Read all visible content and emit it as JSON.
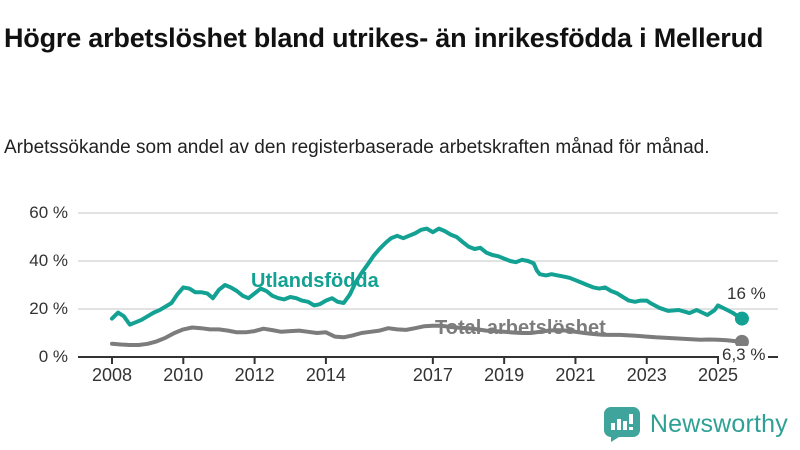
{
  "header": {
    "title": "Högre arbetslöshet bland utrikes- än inrikesfödda i Mellerud",
    "subtitle": "Arbetssökande som andel av den registerbaserade arbetskraften månad för månad."
  },
  "branding": {
    "name": "Newsworthy",
    "logo_icon": "bar-chart-speech-bubble-icon",
    "logo_color": "#3fa49c",
    "text_color": "#2ea094"
  },
  "colors": {
    "series_teal": "#12a192",
    "series_gray": "#7c7c7c",
    "axis": "#333333",
    "gridline": "#d9d9d9"
  },
  "chart_data": {
    "type": "line",
    "title": "Högre arbetslöshet bland utrikes- än inrikesfödda i Mellerud",
    "subtitle": "Arbetssökande som andel av den registerbaserade arbetskraften månad för månad.",
    "ylabel": "",
    "xlabel": "",
    "ylim": [
      0,
      60
    ],
    "grid": "horizontal",
    "legend_position": "inline-labels",
    "y_axis": {
      "unit": "%",
      "ticks": [
        {
          "value": 0,
          "label": "0 %"
        },
        {
          "value": 20,
          "label": "20 %"
        },
        {
          "value": 40,
          "label": "40 %"
        },
        {
          "value": 60,
          "label": "60 %"
        }
      ]
    },
    "x_axis": {
      "ticks": [
        {
          "value": 2008,
          "label": "2008"
        },
        {
          "value": 2010,
          "label": "2010"
        },
        {
          "value": 2012,
          "label": "2012"
        },
        {
          "value": 2014,
          "label": "2014"
        },
        {
          "value": 2017,
          "label": "2017"
        },
        {
          "value": 2019,
          "label": "2019"
        },
        {
          "value": 2021,
          "label": "2021"
        },
        {
          "value": 2023,
          "label": "2023"
        },
        {
          "value": 2025,
          "label": "2025"
        }
      ]
    },
    "series": [
      {
        "name": "Utlandsfödda",
        "color": "#12a192",
        "end_label": "16 %",
        "end_value": 16,
        "points": [
          [
            2008.0,
            16
          ],
          [
            2008.17,
            18.5
          ],
          [
            2008.33,
            17
          ],
          [
            2008.5,
            13.5
          ],
          [
            2008.67,
            14.5
          ],
          [
            2008.83,
            15.5
          ],
          [
            2009.0,
            17
          ],
          [
            2009.17,
            18.5
          ],
          [
            2009.33,
            19.5
          ],
          [
            2009.5,
            21
          ],
          [
            2009.67,
            22.5
          ],
          [
            2009.83,
            26
          ],
          [
            2010.0,
            29
          ],
          [
            2010.17,
            28.5
          ],
          [
            2010.33,
            27
          ],
          [
            2010.5,
            27
          ],
          [
            2010.67,
            26.5
          ],
          [
            2010.83,
            24.5
          ],
          [
            2011.0,
            28
          ],
          [
            2011.17,
            30
          ],
          [
            2011.33,
            29
          ],
          [
            2011.5,
            27.5
          ],
          [
            2011.67,
            25.5
          ],
          [
            2011.83,
            24.5
          ],
          [
            2012.0,
            26.5
          ],
          [
            2012.17,
            28.5
          ],
          [
            2012.33,
            27.5
          ],
          [
            2012.5,
            25.5
          ],
          [
            2012.67,
            24.5
          ],
          [
            2012.83,
            24
          ],
          [
            2013.0,
            25
          ],
          [
            2013.17,
            24.5
          ],
          [
            2013.33,
            23.5
          ],
          [
            2013.5,
            23
          ],
          [
            2013.67,
            21.5
          ],
          [
            2013.83,
            22
          ],
          [
            2014.0,
            23.5
          ],
          [
            2014.17,
            24.5
          ],
          [
            2014.33,
            23
          ],
          [
            2014.5,
            22.5
          ],
          [
            2014.67,
            26
          ],
          [
            2014.83,
            31
          ],
          [
            2015.0,
            35
          ],
          [
            2015.17,
            38.5
          ],
          [
            2015.33,
            42
          ],
          [
            2015.5,
            45
          ],
          [
            2015.67,
            47.5
          ],
          [
            2015.83,
            49.5
          ],
          [
            2016.0,
            50.5
          ],
          [
            2016.17,
            49.5
          ],
          [
            2016.33,
            50.5
          ],
          [
            2016.5,
            51.5
          ],
          [
            2016.67,
            53
          ],
          [
            2016.83,
            53.5
          ],
          [
            2017.0,
            52
          ],
          [
            2017.17,
            53.5
          ],
          [
            2017.33,
            52.5
          ],
          [
            2017.5,
            51
          ],
          [
            2017.67,
            50
          ],
          [
            2017.83,
            48
          ],
          [
            2018.0,
            46
          ],
          [
            2018.17,
            45
          ],
          [
            2018.33,
            45.5
          ],
          [
            2018.5,
            43.5
          ],
          [
            2018.67,
            42.5
          ],
          [
            2018.83,
            42
          ],
          [
            2019.0,
            41
          ],
          [
            2019.17,
            40
          ],
          [
            2019.33,
            39.5
          ],
          [
            2019.5,
            40.5
          ],
          [
            2019.67,
            40
          ],
          [
            2019.83,
            39
          ],
          [
            2019.92,
            36
          ],
          [
            2020.0,
            34.5
          ],
          [
            2020.17,
            34
          ],
          [
            2020.33,
            34.5
          ],
          [
            2020.5,
            34
          ],
          [
            2020.67,
            33.5
          ],
          [
            2020.83,
            33
          ],
          [
            2021.0,
            32
          ],
          [
            2021.17,
            31
          ],
          [
            2021.33,
            30
          ],
          [
            2021.5,
            29
          ],
          [
            2021.67,
            28.5
          ],
          [
            2021.83,
            29
          ],
          [
            2022.0,
            27.5
          ],
          [
            2022.17,
            26.5
          ],
          [
            2022.33,
            25
          ],
          [
            2022.5,
            23.5
          ],
          [
            2022.67,
            23
          ],
          [
            2022.83,
            23.5
          ],
          [
            2023.0,
            23.5
          ],
          [
            2023.1,
            22.5
          ],
          [
            2023.35,
            20.5
          ],
          [
            2023.6,
            19.2
          ],
          [
            2023.9,
            19.6
          ],
          [
            2024.2,
            18.3
          ],
          [
            2024.4,
            19.6
          ],
          [
            2024.7,
            17.5
          ],
          [
            2024.9,
            19.5
          ],
          [
            2025.0,
            21.5
          ],
          [
            2025.2,
            20
          ],
          [
            2025.4,
            18.5
          ],
          [
            2025.55,
            17
          ],
          [
            2025.67,
            16
          ]
        ]
      },
      {
        "name": "Total arbetslöshet",
        "color": "#7c7c7c",
        "end_label": "6,3 %",
        "end_value": 6.3,
        "points": [
          [
            2008.0,
            5.5
          ],
          [
            2008.25,
            5.2
          ],
          [
            2008.5,
            5
          ],
          [
            2008.75,
            5
          ],
          [
            2009.0,
            5.5
          ],
          [
            2009.25,
            6.5
          ],
          [
            2009.5,
            8
          ],
          [
            2009.75,
            10
          ],
          [
            2010.0,
            11.5
          ],
          [
            2010.25,
            12.3
          ],
          [
            2010.5,
            12
          ],
          [
            2010.75,
            11.5
          ],
          [
            2011.0,
            11.5
          ],
          [
            2011.25,
            11
          ],
          [
            2011.5,
            10.3
          ],
          [
            2011.75,
            10.3
          ],
          [
            2012.0,
            10.8
          ],
          [
            2012.25,
            11.8
          ],
          [
            2012.5,
            11.2
          ],
          [
            2012.75,
            10.5
          ],
          [
            2013.0,
            10.8
          ],
          [
            2013.25,
            11
          ],
          [
            2013.5,
            10.5
          ],
          [
            2013.75,
            10
          ],
          [
            2014.0,
            10.3
          ],
          [
            2014.25,
            8.5
          ],
          [
            2014.5,
            8.2
          ],
          [
            2014.75,
            9
          ],
          [
            2015.0,
            10
          ],
          [
            2015.25,
            10.5
          ],
          [
            2015.5,
            11
          ],
          [
            2015.75,
            12
          ],
          [
            2016.0,
            11.5
          ],
          [
            2016.25,
            11.3
          ],
          [
            2016.5,
            12
          ],
          [
            2016.75,
            12.8
          ],
          [
            2017.0,
            13
          ],
          [
            2017.25,
            13
          ],
          [
            2017.5,
            12.5
          ],
          [
            2017.75,
            12.2
          ],
          [
            2018.0,
            12
          ],
          [
            2018.25,
            11.5
          ],
          [
            2018.5,
            11
          ],
          [
            2018.75,
            10.8
          ],
          [
            2019.0,
            10.5
          ],
          [
            2019.25,
            10.2
          ],
          [
            2019.5,
            10
          ],
          [
            2019.75,
            10
          ],
          [
            2020.0,
            10.5
          ],
          [
            2020.25,
            11
          ],
          [
            2020.5,
            11.2
          ],
          [
            2020.75,
            11
          ],
          [
            2021.0,
            10.5
          ],
          [
            2021.25,
            10
          ],
          [
            2021.5,
            9.6
          ],
          [
            2021.75,
            9.3
          ],
          [
            2022.0,
            9.2
          ],
          [
            2022.25,
            9.2
          ],
          [
            2022.5,
            9
          ],
          [
            2022.75,
            8.8
          ],
          [
            2023.0,
            8.5
          ],
          [
            2023.25,
            8.2
          ],
          [
            2023.5,
            8
          ],
          [
            2023.75,
            7.8
          ],
          [
            2024.0,
            7.6
          ],
          [
            2024.25,
            7.4
          ],
          [
            2024.5,
            7.2
          ],
          [
            2024.75,
            7.3
          ],
          [
            2025.0,
            7.2
          ],
          [
            2025.25,
            7
          ],
          [
            2025.5,
            6.6
          ],
          [
            2025.67,
            6.3
          ]
        ]
      }
    ]
  }
}
